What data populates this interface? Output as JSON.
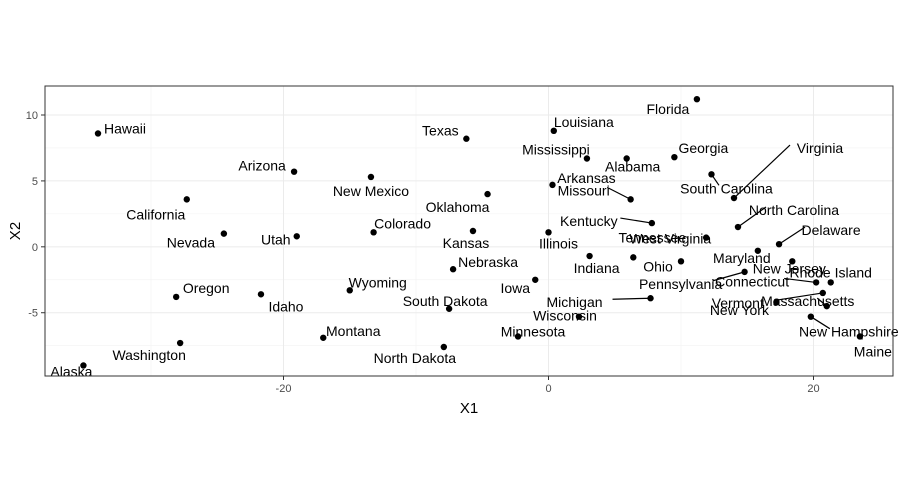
{
  "chart_data": {
    "type": "scatter",
    "title": "",
    "xlabel": "X1",
    "ylabel": "X2",
    "xlim": [
      -38,
      26
    ],
    "ylim": [
      -9.8,
      12.2
    ],
    "x_ticks": [
      -20,
      0,
      20
    ],
    "y_ticks": [
      -5,
      0,
      5,
      10
    ],
    "grid": true,
    "theme": "bw",
    "point_color": "#000000",
    "points": [
      {
        "name": "Alabama",
        "x": 5.9,
        "y": 6.7
      },
      {
        "name": "Alaska",
        "x": -35.1,
        "y": -9.0
      },
      {
        "name": "Arizona",
        "x": -19.2,
        "y": 5.7
      },
      {
        "name": "Arkansas",
        "x": 0.3,
        "y": 4.7
      },
      {
        "name": "California",
        "x": -27.3,
        "y": 3.6
      },
      {
        "name": "Colorado",
        "x": -13.2,
        "y": 1.1
      },
      {
        "name": "Connecticut",
        "x": 20.2,
        "y": -2.7
      },
      {
        "name": "Delaware",
        "x": 17.4,
        "y": 0.2
      },
      {
        "name": "Florida",
        "x": 11.2,
        "y": 11.2
      },
      {
        "name": "Georgia",
        "x": 9.5,
        "y": 6.8
      },
      {
        "name": "Hawaii",
        "x": -34.0,
        "y": 8.6
      },
      {
        "name": "Idaho",
        "x": -21.7,
        "y": -3.6
      },
      {
        "name": "Illinois",
        "x": 0.0,
        "y": 1.1
      },
      {
        "name": "Indiana",
        "x": 3.1,
        "y": -0.7
      },
      {
        "name": "Iowa",
        "x": -1.0,
        "y": -2.5
      },
      {
        "name": "Kansas",
        "x": -5.7,
        "y": 1.2
      },
      {
        "name": "Kentucky",
        "x": 7.8,
        "y": 1.8
      },
      {
        "name": "Louisiana",
        "x": 0.4,
        "y": 8.8
      },
      {
        "name": "Maine",
        "x": 23.5,
        "y": -6.8
      },
      {
        "name": "Maryland",
        "x": 15.8,
        "y": -0.3
      },
      {
        "name": "Massachusetts",
        "x": 21.0,
        "y": -4.5
      },
      {
        "name": "Michigan",
        "x": 7.7,
        "y": -3.9
      },
      {
        "name": "Minnesota",
        "x": -2.3,
        "y": -6.8
      },
      {
        "name": "Mississippi",
        "x": 2.9,
        "y": 6.7
      },
      {
        "name": "Missouri",
        "x": 6.2,
        "y": 3.6
      },
      {
        "name": "Montana",
        "x": -17.0,
        "y": -6.9
      },
      {
        "name": "Nebraska",
        "x": -7.2,
        "y": -1.7
      },
      {
        "name": "Nevada",
        "x": -24.5,
        "y": 1.0
      },
      {
        "name": "New Hampshire",
        "x": 19.8,
        "y": -5.3
      },
      {
        "name": "New Jersey",
        "x": 18.4,
        "y": -1.1
      },
      {
        "name": "New Mexico",
        "x": -13.4,
        "y": 5.3
      },
      {
        "name": "New York",
        "x": 17.2,
        "y": -4.2
      },
      {
        "name": "North Carolina",
        "x": 14.3,
        "y": 1.5
      },
      {
        "name": "North Dakota",
        "x": -7.9,
        "y": -7.6
      },
      {
        "name": "Ohio",
        "x": 10.0,
        "y": -1.1
      },
      {
        "name": "Oklahoma",
        "x": -4.6,
        "y": 4.0
      },
      {
        "name": "Oregon",
        "x": -28.1,
        "y": -3.8
      },
      {
        "name": "Pennsylvania",
        "x": 14.8,
        "y": -1.9
      },
      {
        "name": "Rhode Island",
        "x": 21.3,
        "y": -2.7
      },
      {
        "name": "South Carolina",
        "x": 12.3,
        "y": 5.5
      },
      {
        "name": "South Dakota",
        "x": -7.5,
        "y": -4.7
      },
      {
        "name": "Tennessee",
        "x": 6.4,
        "y": -0.8
      },
      {
        "name": "Texas",
        "x": -6.2,
        "y": 8.2
      },
      {
        "name": "Utah",
        "x": -19.0,
        "y": 0.8
      },
      {
        "name": "Vermont",
        "x": 20.7,
        "y": -3.5
      },
      {
        "name": "Virginia",
        "x": 14.0,
        "y": 3.7
      },
      {
        "name": "Washington",
        "x": -27.8,
        "y": -7.3
      },
      {
        "name": "West Virginia",
        "x": 11.9,
        "y": 0.7
      },
      {
        "name": "Wisconsin",
        "x": 2.3,
        "y": -5.3
      },
      {
        "name": "Wyoming",
        "x": -15.0,
        "y": -3.3
      }
    ]
  }
}
